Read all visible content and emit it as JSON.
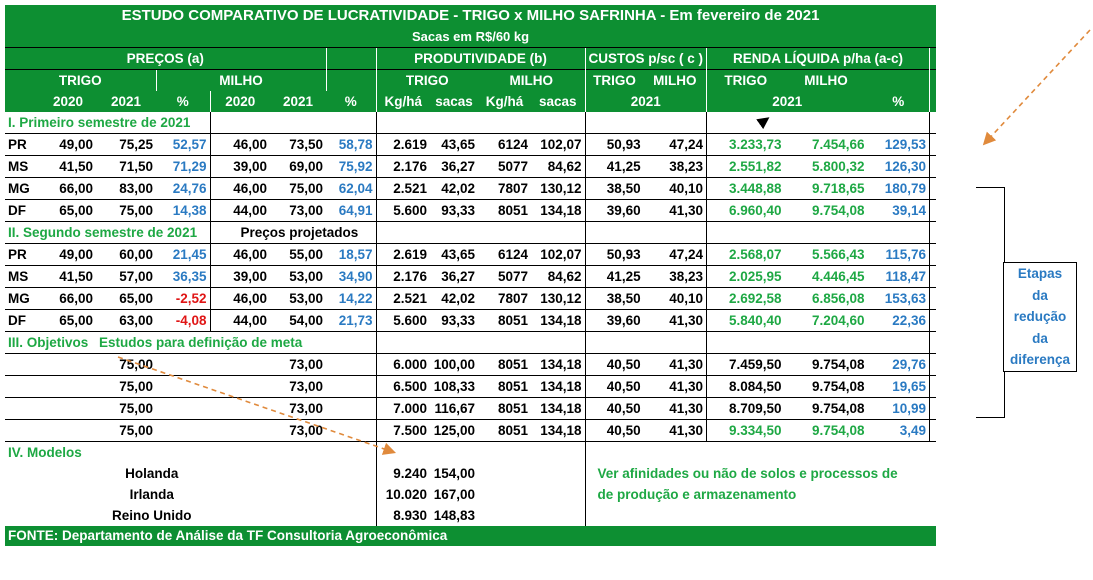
{
  "header": {
    "title": "ESTUDO COMPARATIVO DE LUCRATIVIDADE - TRIGO x MILHO SAFRINHA - Em fevereiro de 2021",
    "subtitle": "Sacas em R$/60 kg",
    "groups": {
      "precos": "PREÇOS (a)",
      "produtividade": "PRODUTIVIDADE (b)",
      "custos": "CUSTOS p/sc ( c )",
      "renda": "RENDA LÍQUIDA p/ha (a-c)"
    },
    "crops": {
      "trigo": "TRIGO",
      "milho": "MILHO"
    },
    "cols": {
      "y2020": "2020",
      "y2021": "2021",
      "pct": "%",
      "kgha": "Kg/há",
      "sacas": "sacas"
    }
  },
  "sections": {
    "s1": "I. Primeiro semestre de 2021",
    "s2": "II. Segundo semestre de 2021",
    "s2_note": "Preços projetados",
    "s3": "III. Objetivos",
    "s3_note": "Estudos para definição de meta",
    "s4": "IV. Modelos"
  },
  "rows_s1": [
    {
      "uf": "PR",
      "t2020": "49,00",
      "t2021": "75,25",
      "tp": "52,57",
      "m2020": "46,00",
      "m2021": "73,50",
      "mp": "58,78",
      "tkg": "2.619",
      "tsc": "43,65",
      "mkg": "6124",
      "msc": "102,07",
      "ct": "50,93",
      "cm": "47,24",
      "rt": "3.233,73",
      "rm": "7.454,66",
      "rp": "129,53"
    },
    {
      "uf": "MS",
      "t2020": "41,50",
      "t2021": "71,50",
      "tp": "71,29",
      "m2020": "39,00",
      "m2021": "69,00",
      "mp": "75,92",
      "tkg": "2.176",
      "tsc": "36,27",
      "mkg": "5077",
      "msc": "84,62",
      "ct": "41,25",
      "cm": "38,23",
      "rt": "2.551,82",
      "rm": "5.800,32",
      "rp": "126,30"
    },
    {
      "uf": "MG",
      "t2020": "66,00",
      "t2021": "83,00",
      "tp": "24,76",
      "m2020": "46,00",
      "m2021": "75,00",
      "mp": "62,04",
      "tkg": "2.521",
      "tsc": "42,02",
      "mkg": "7807",
      "msc": "130,12",
      "ct": "38,50",
      "cm": "40,10",
      "rt": "3.448,88",
      "rm": "9.718,65",
      "rp": "180,79"
    },
    {
      "uf": "DF",
      "t2020": "65,00",
      "t2021": "75,00",
      "tp": "14,38",
      "m2020": "44,00",
      "m2021": "73,00",
      "mp": "64,91",
      "tkg": "5.600",
      "tsc": "93,33",
      "mkg": "8051",
      "msc": "134,18",
      "ct": "39,60",
      "cm": "41,30",
      "rt": "6.960,40",
      "rm": "9.754,08",
      "rp": "39,14"
    }
  ],
  "rows_s2": [
    {
      "uf": "PR",
      "t2020": "49,00",
      "t2021": "60,00",
      "tp": "21,45",
      "m2020": "46,00",
      "m2021": "55,00",
      "mp": "18,57",
      "tkg": "2.619",
      "tsc": "43,65",
      "mkg": "6124",
      "msc": "102,07",
      "ct": "50,93",
      "cm": "47,24",
      "rt": "2.568,07",
      "rm": "5.566,43",
      "rp": "115,76"
    },
    {
      "uf": "MS",
      "t2020": "41,50",
      "t2021": "57,00",
      "tp": "36,35",
      "m2020": "39,00",
      "m2021": "53,00",
      "mp": "34,90",
      "tkg": "2.176",
      "tsc": "36,27",
      "mkg": "5077",
      "msc": "84,62",
      "ct": "41,25",
      "cm": "38,23",
      "rt": "2.025,95",
      "rm": "4.446,45",
      "rp": "118,47"
    },
    {
      "uf": "MG",
      "t2020": "66,00",
      "t2021": "65,00",
      "tp": "-2,52",
      "m2020": "46,00",
      "m2021": "53,00",
      "mp": "14,22",
      "tkg": "2.521",
      "tsc": "42,02",
      "mkg": "7807",
      "msc": "130,12",
      "ct": "38,50",
      "cm": "40,10",
      "rt": "2.692,58",
      "rm": "6.856,08",
      "rp": "153,63"
    },
    {
      "uf": "DF",
      "t2020": "65,00",
      "t2021": "63,00",
      "tp": "-4,08",
      "m2020": "44,00",
      "m2021": "54,00",
      "mp": "21,73",
      "tkg": "5.600",
      "tsc": "93,33",
      "mkg": "8051",
      "msc": "134,18",
      "ct": "39,60",
      "cm": "41,30",
      "rt": "5.840,40",
      "rm": "7.204,60",
      "rp": "22,36"
    }
  ],
  "rows_s3": [
    {
      "t2021": "75,00",
      "m2021": "73,00",
      "tkg": "6.000",
      "tsc": "100,00",
      "mkg": "8051",
      "msc": "134,18",
      "ct": "40,50",
      "cm": "41,30",
      "rt": "7.459,50",
      "rm": "9.754,08",
      "rp": "29,76"
    },
    {
      "t2021": "75,00",
      "m2021": "73,00",
      "tkg": "6.500",
      "tsc": "108,33",
      "mkg": "8051",
      "msc": "134,18",
      "ct": "40,50",
      "cm": "41,30",
      "rt": "8.084,50",
      "rm": "9.754,08",
      "rp": "19,65"
    },
    {
      "t2021": "75,00",
      "m2021": "73,00",
      "tkg": "7.000",
      "tsc": "116,67",
      "mkg": "8051",
      "msc": "134,18",
      "ct": "40,50",
      "cm": "41,30",
      "rt": "8.709,50",
      "rm": "9.754,08",
      "rp": "10,99"
    },
    {
      "t2021": "75,00",
      "m2021": "73,00",
      "tkg": "7.500",
      "tsc": "125,00",
      "mkg": "8051",
      "msc": "134,18",
      "ct": "40,50",
      "cm": "41,30",
      "rt": "9.334,50",
      "rm": "9.754,08",
      "rp": "3,49"
    }
  ],
  "rows_s4": [
    {
      "name": "Holanda",
      "tkg": "9.240",
      "tsc": "154,00"
    },
    {
      "name": "Irlanda",
      "tkg": "10.020",
      "tsc": "167,00"
    },
    {
      "name": "Reino Unido",
      "tkg": "8.930",
      "tsc": "148,83"
    }
  ],
  "s4_note_1": "Ver afinidades ou não de solos e processos de",
  "s4_note_2": "de produção e armazenamento",
  "side_note": [
    "Etapas",
    "da",
    "redução",
    "da",
    "diferença"
  ],
  "footer": "FONTE: Departamento de Análise da TF Consultoria Agroeconômica",
  "colors": {
    "header_green": "#0d8f32",
    "pct_blue": "#2a7ac2",
    "negative_red": "#e01515",
    "renda_green": "#1ea844",
    "arrow_orange": "#e08a3c"
  }
}
